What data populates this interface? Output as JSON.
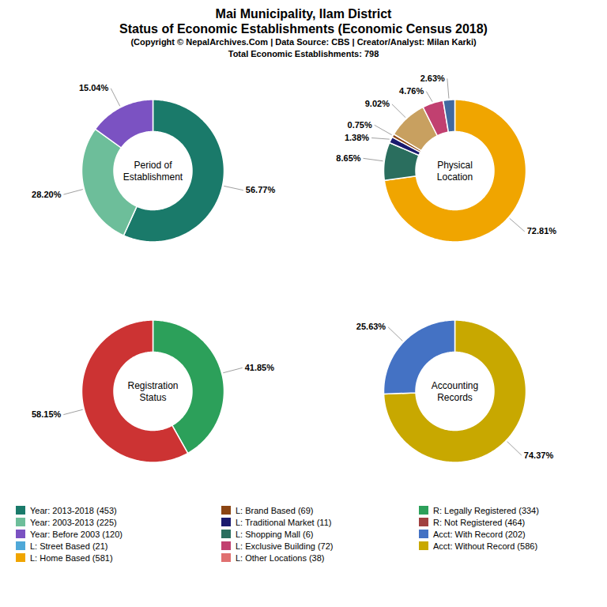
{
  "title": [
    "Mai Municipality, Ilam District",
    "Status of Economic Establishments (Economic Census 2018)"
  ],
  "subtitle": [
    "(Copyright © NepalArchives.Com | Data Source: CBS | Creator/Analyst: Milan Karki)",
    "Total Economic Establishments: 798"
  ],
  "chart_data": [
    {
      "type": "donut",
      "title": "Period of\nEstablishment",
      "values": [
        56.77,
        28.2,
        15.04
      ],
      "value_labels": [
        "56.77%",
        "28.20%",
        "15.04%"
      ],
      "colors": [
        "#1a7a6a",
        "#6dbe9a",
        "#7b52c2"
      ],
      "data_labels": true
    },
    {
      "type": "donut",
      "title": "Physical\nLocation",
      "values": [
        72.81,
        8.65,
        1.38,
        0.75,
        9.02,
        4.76,
        2.63
      ],
      "value_labels": [
        "72.81%",
        "8.65%",
        "1.38%",
        "0.75%",
        "9.02%",
        "4.76%",
        "2.63%"
      ],
      "colors": [
        "#f0a500",
        "#2a6e5e",
        "#1a1a6e",
        "#8b4513",
        "#c8a060",
        "#c14070",
        "#4169a0"
      ],
      "data_labels": true
    },
    {
      "type": "donut",
      "title": "Registration\nStatus",
      "values": [
        41.85,
        58.15
      ],
      "value_labels": [
        "41.85%",
        "58.15%"
      ],
      "colors": [
        "#2ca05a",
        "#cc3333"
      ],
      "data_labels": true
    },
    {
      "type": "donut",
      "title": "Accounting\nRecords",
      "values": [
        74.37,
        25.63
      ],
      "value_labels": [
        "74.37%",
        "25.63%"
      ],
      "colors": [
        "#c8a800",
        "#4472c4"
      ],
      "data_labels": true
    }
  ],
  "legend_entries": [
    {
      "name": "Year: 2013-2018 (453)",
      "color": "#1a7a6a"
    },
    {
      "name": "Year: 2003-2013 (225)",
      "color": "#6dbe9a"
    },
    {
      "name": "Year: Before 2003 (120)",
      "color": "#7b52c2"
    },
    {
      "name": "L: Street Based (21)",
      "color": "#4fa8d8"
    },
    {
      "name": "L: Home Based (581)",
      "color": "#f0a500"
    },
    {
      "name": "L: Brand Based (69)",
      "color": "#8b4513"
    },
    {
      "name": "L: Traditional Market (11)",
      "color": "#1a1a6e"
    },
    {
      "name": "L: Shopping Mall (6)",
      "color": "#2a6e5e"
    },
    {
      "name": "L: Exclusive Building (72)",
      "color": "#c14070"
    },
    {
      "name": "L: Other Locations (38)",
      "color": "#e07070"
    },
    {
      "name": "R: Legally Registered (334)",
      "color": "#2ca05a"
    },
    {
      "name": "R: Not Registered (464)",
      "color": "#a04040"
    },
    {
      "name": "Acct: With Record (202)",
      "color": "#4472c4"
    },
    {
      "name": "Acct: Without Record (586)",
      "color": "#c8a800"
    }
  ]
}
